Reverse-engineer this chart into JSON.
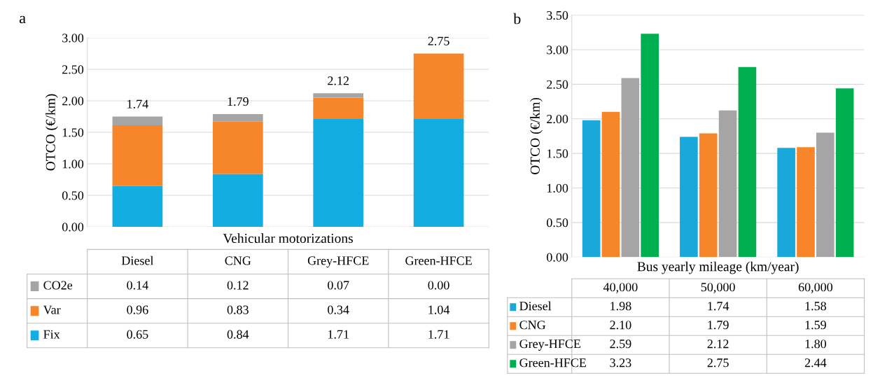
{
  "chart_data": [
    {
      "type": "bar",
      "title": "a",
      "xlabel": "Vehicular motorizations",
      "ylabel": "OTCO (€/km)",
      "stacked": true,
      "categories": [
        "Diesel",
        "CNG",
        "Grey-HFCE",
        "Green-HFCE"
      ],
      "series": [
        {
          "name": "Fix",
          "color": "#12aee2",
          "values": [
            0.65,
            0.84,
            1.71,
            1.71
          ],
          "value_labels": [
            "0.65",
            "0.84",
            "1.71",
            "1.71"
          ]
        },
        {
          "name": "Var",
          "color": "#f7862a",
          "values": [
            0.96,
            0.83,
            0.34,
            1.04
          ],
          "value_labels": [
            "0.96",
            "0.83",
            "0.34",
            "1.04"
          ]
        },
        {
          "name": "CO2e",
          "color": "#a5a5a5",
          "values": [
            0.14,
            0.12,
            0.07,
            0.0
          ],
          "value_labels": [
            "0.14",
            "0.12",
            "0.07",
            "0.00"
          ]
        }
      ],
      "totals": [
        "1.74",
        "1.79",
        "2.12",
        "2.75"
      ],
      "ylim": [
        0,
        3.0
      ],
      "yticks": [
        {
          "value": 0,
          "label": "0.00"
        },
        {
          "value": 0.5,
          "label": "0.50"
        },
        {
          "value": 1,
          "label": "1.00"
        },
        {
          "value": 1.5,
          "label": "1.50"
        },
        {
          "value": 2,
          "label": "2.00"
        },
        {
          "value": 2.5,
          "label": "2.50"
        },
        {
          "value": 3,
          "label": "3.00"
        }
      ],
      "grid": "y",
      "legend": "bottom"
    },
    {
      "type": "bar",
      "title": "b",
      "xlabel": "Bus yearly mileage (km/year)",
      "ylabel": "OTCO (€/km)",
      "categories": [
        "40,000",
        "50,000",
        "60,000"
      ],
      "series": [
        {
          "name": "Diesel",
          "color": "#1aa7d9",
          "values": [
            1.98,
            1.74,
            1.58
          ],
          "value_labels": [
            "1.98",
            "1.74",
            "1.58"
          ]
        },
        {
          "name": "CNG",
          "color": "#f7862a",
          "values": [
            2.1,
            1.79,
            1.59
          ],
          "value_labels": [
            "2.10",
            "1.79",
            "1.59"
          ]
        },
        {
          "name": "Grey-HFCE",
          "color": "#a5a5a5",
          "values": [
            2.59,
            2.12,
            1.8
          ],
          "value_labels": [
            "2.59",
            "2.12",
            "1.80"
          ]
        },
        {
          "name": "Green-HFCE",
          "color": "#00b050",
          "values": [
            3.23,
            2.75,
            2.44
          ],
          "value_labels": [
            "3.23",
            "2.75",
            "2.44"
          ]
        }
      ],
      "ylim": [
        0,
        3.5
      ],
      "yticks": [
        {
          "value": 0,
          "label": "0.00"
        },
        {
          "value": 0.5,
          "label": "0.50"
        },
        {
          "value": 1,
          "label": "1.00"
        },
        {
          "value": 1.5,
          "label": "1.50"
        },
        {
          "value": 2,
          "label": "2.00"
        },
        {
          "value": 2.5,
          "label": "2.50"
        },
        {
          "value": 3,
          "label": "3.00"
        },
        {
          "value": 3.5,
          "label": "3.50"
        }
      ],
      "grid": "y",
      "legend": "bottom"
    }
  ]
}
